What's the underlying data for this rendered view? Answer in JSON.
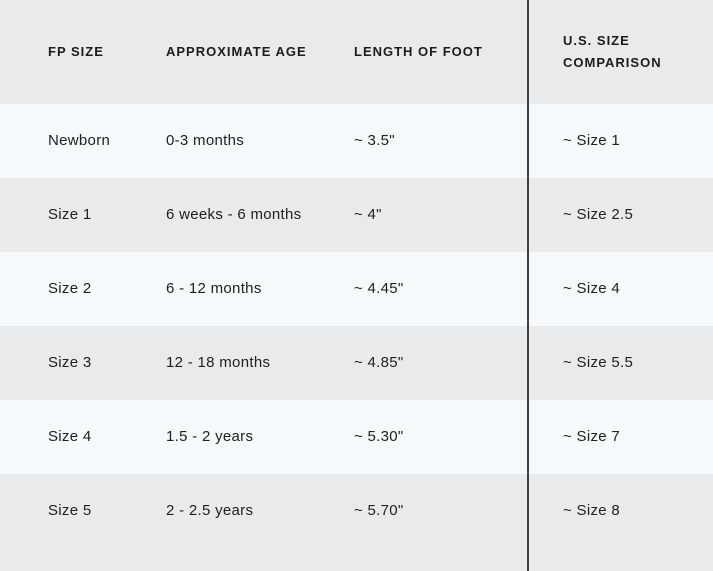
{
  "table": {
    "headers": [
      "FP SIZE",
      "APPROXIMATE AGE",
      "LENGTH OF FOOT",
      "U.S. SIZE COMPARISON"
    ],
    "rows": [
      {
        "fp_size": "Newborn",
        "approximate_age": "0-3 months",
        "length_of_foot": "~ 3.5\"",
        "us_size_comparison": "~ Size 1"
      },
      {
        "fp_size": "Size 1",
        "approximate_age": "6 weeks - 6 months",
        "length_of_foot": "~ 4\"",
        "us_size_comparison": "~ Size 2.5"
      },
      {
        "fp_size": "Size 2",
        "approximate_age": "6 - 12 months",
        "length_of_foot": "~ 4.45\"",
        "us_size_comparison": "~ Size 4"
      },
      {
        "fp_size": "Size 3",
        "approximate_age": "12 - 18 months",
        "length_of_foot": "~ 4.85\"",
        "us_size_comparison": "~ Size 5.5"
      },
      {
        "fp_size": "Size 4",
        "approximate_age": "1.5 - 2 years",
        "length_of_foot": "~ 5.30\"",
        "us_size_comparison": "~ Size 7"
      },
      {
        "fp_size": "Size 5",
        "approximate_age": "2 - 2.5 years",
        "length_of_foot": "~ 5.70\"",
        "us_size_comparison": "~ Size 8"
      }
    ]
  },
  "colors": {
    "row_light": "#f7f8f9",
    "row_gray": "#e9eae9",
    "divider_line": "#3f3f3f",
    "text": "#212121",
    "header_text": "#1c1c1c"
  }
}
